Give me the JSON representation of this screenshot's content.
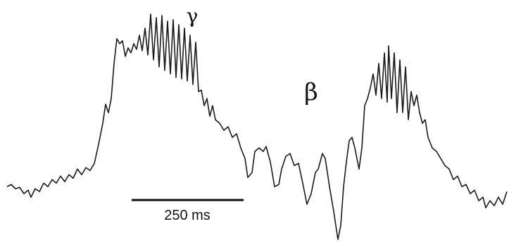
{
  "labels": {
    "gamma": "γ",
    "beta": "β"
  },
  "scale_bar": {
    "label": "250 ms"
  }
}
